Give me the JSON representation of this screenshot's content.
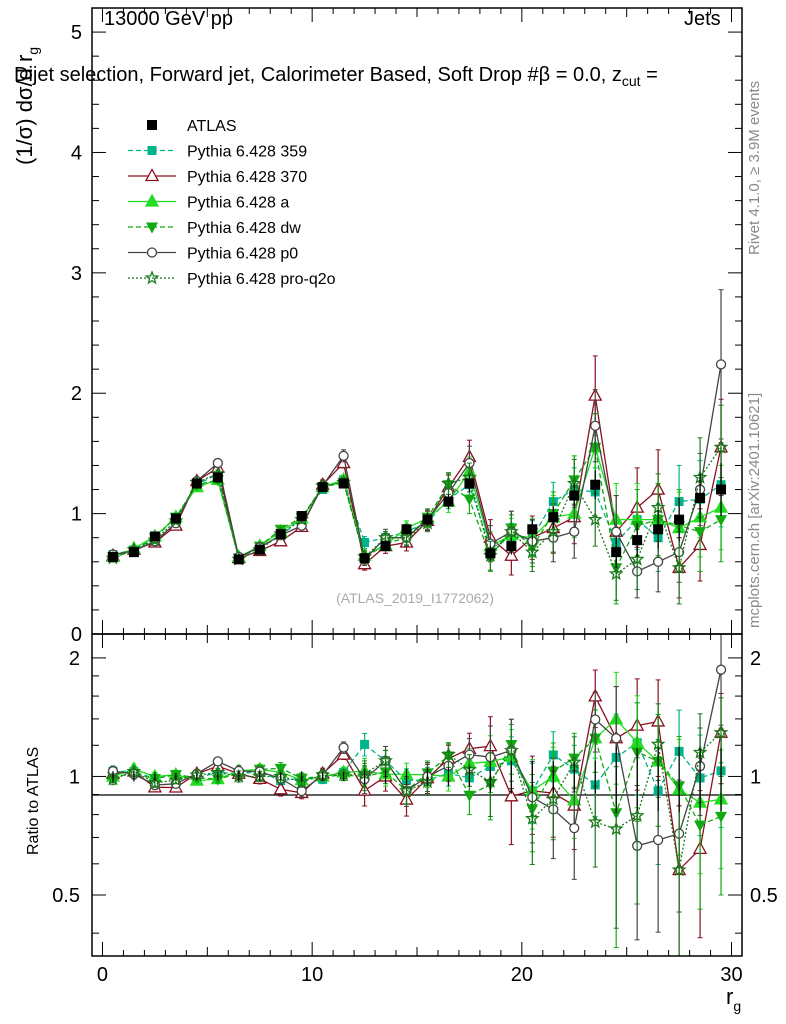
{
  "header": {
    "energy_label": "13000 GeV pp",
    "process_label": "Jets",
    "plot_title": "Dijet selection, Forward jet, Calorimeter Based, Soft Drop #β = 0.0, z",
    "title_sub": "cut",
    "title_tail": " ="
  },
  "side_labels": {
    "rivet": "Rivet 4.1.0, ≥ 3.9M events",
    "mcplots": "mcplots.cern.ch [arXiv:2401.10621]"
  },
  "watermark": "(ATLAS_2019_I1772062)",
  "axes": {
    "main_ylabel": "(1/σ) dσ/d r",
    "main_ylabel_sub": "g",
    "ratio_ylabel": "Ratio to ATLAS",
    "xlabel": "r",
    "xlabel_sub": "g"
  },
  "chart_data": {
    "type": "scatter",
    "x": [
      0.5,
      1.5,
      2.5,
      3.5,
      4.5,
      5.5,
      6.5,
      7.5,
      8.5,
      9.5,
      10.5,
      11.5,
      12.5,
      13.5,
      14.5,
      15.5,
      16.5,
      17.5,
      18.5,
      19.5,
      20.5,
      21.5,
      22.5,
      23.5,
      24.5,
      25.5,
      26.5,
      27.5,
      28.5,
      29.5
    ],
    "xlim": [
      -0.5,
      30.5
    ],
    "ylim": [
      0,
      5.2
    ],
    "ratio_ylim": [
      0.35,
      2.3
    ],
    "x_ticks": [
      0,
      10,
      20,
      30
    ],
    "y_ticks": [
      0,
      1,
      2,
      3,
      4,
      5
    ],
    "ratio_ticks": [
      0.5,
      1,
      2
    ],
    "reference": {
      "name": "ATLAS",
      "values": [
        0.64,
        0.68,
        0.81,
        0.96,
        1.25,
        1.3,
        0.62,
        0.7,
        0.83,
        0.98,
        1.22,
        1.25,
        0.63,
        0.73,
        0.87,
        0.95,
        1.1,
        1.25,
        0.67,
        0.73,
        0.87,
        0.97,
        1.15,
        1.24,
        0.68,
        0.78,
        0.87,
        0.95,
        1.13,
        1.2
      ],
      "errors": [
        0.02,
        0.02,
        0.02,
        0.02,
        0.03,
        0.03,
        0.02,
        0.02,
        0.02,
        0.03,
        0.03,
        0.03,
        0.03,
        0.03,
        0.04,
        0.05,
        0.06,
        0.07,
        0.06,
        0.07,
        0.08,
        0.09,
        0.1,
        0.12,
        0.13,
        0.14,
        0.16,
        0.18,
        0.2,
        0.22
      ]
    },
    "series": [
      {
        "name": "Pythia 6.428 359",
        "color": "#00b38a",
        "dash": "5,3",
        "marker": "square-filled",
        "values": [
          0.66,
          0.7,
          0.8,
          0.97,
          1.24,
          1.33,
          0.63,
          0.72,
          0.81,
          0.97,
          1.2,
          1.28,
          0.76,
          0.8,
          0.85,
          0.93,
          1.12,
          1.24,
          0.71,
          0.8,
          0.8,
          1.1,
          1.2,
          1.18,
          0.76,
          0.95,
          0.8,
          1.1,
          1.12,
          1.24
        ],
        "errors": [
          0.02,
          0.02,
          0.02,
          0.02,
          0.03,
          0.03,
          0.02,
          0.02,
          0.03,
          0.03,
          0.03,
          0.04,
          0.05,
          0.05,
          0.06,
          0.07,
          0.08,
          0.1,
          0.1,
          0.12,
          0.14,
          0.16,
          0.18,
          0.2,
          0.22,
          0.25,
          0.28,
          0.3,
          0.32,
          0.35
        ]
      },
      {
        "name": "Pythia 6.428 370",
        "color": "#8b0f1f",
        "dash": "",
        "marker": "triangle-open",
        "values": [
          0.65,
          0.7,
          0.76,
          0.9,
          1.27,
          1.38,
          0.63,
          0.69,
          0.77,
          0.89,
          1.24,
          1.42,
          0.58,
          0.73,
          0.76,
          0.94,
          1.22,
          1.47,
          0.8,
          0.65,
          0.8,
          0.88,
          0.97,
          1.98,
          0.85,
          1.05,
          1.2,
          0.55,
          0.74,
          1.55
        ],
        "errors": [
          0.02,
          0.02,
          0.02,
          0.02,
          0.03,
          0.03,
          0.02,
          0.02,
          0.03,
          0.03,
          0.04,
          0.04,
          0.05,
          0.06,
          0.07,
          0.08,
          0.1,
          0.14,
          0.15,
          0.16,
          0.18,
          0.2,
          0.22,
          0.33,
          0.3,
          0.33,
          0.33,
          0.25,
          0.3,
          0.4
        ]
      },
      {
        "name": "Pythia 6.428 a",
        "color": "#22dd22",
        "dash": "",
        "marker": "triangle-filled",
        "values": [
          0.64,
          0.71,
          0.81,
          0.97,
          1.22,
          1.28,
          0.64,
          0.73,
          0.85,
          0.96,
          1.22,
          1.28,
          0.65,
          0.74,
          0.88,
          0.96,
          1.1,
          1.35,
          0.73,
          0.82,
          0.8,
          0.97,
          1.0,
          1.55,
          0.95,
          0.95,
          0.95,
          0.88,
          0.97,
          1.05
        ],
        "errors": [
          0.02,
          0.02,
          0.02,
          0.02,
          0.03,
          0.03,
          0.02,
          0.02,
          0.03,
          0.03,
          0.03,
          0.04,
          0.05,
          0.05,
          0.06,
          0.07,
          0.09,
          0.12,
          0.12,
          0.14,
          0.16,
          0.18,
          0.2,
          0.28,
          0.3,
          0.3,
          0.3,
          0.3,
          0.33,
          0.35
        ]
      },
      {
        "name": "Pythia 6.428 dw",
        "color": "#11aa11",
        "dash": "5,3",
        "marker": "triangle-down-filled",
        "values": [
          0.64,
          0.69,
          0.8,
          0.97,
          1.24,
          1.28,
          0.63,
          0.73,
          0.87,
          0.97,
          1.22,
          1.26,
          0.63,
          0.75,
          0.8,
          0.97,
          1.24,
          1.12,
          0.64,
          0.88,
          0.72,
          1.0,
          1.28,
          1.55,
          0.55,
          0.9,
          0.95,
          0.9,
          0.85,
          0.95
        ],
        "errors": [
          0.02,
          0.02,
          0.02,
          0.02,
          0.03,
          0.03,
          0.02,
          0.02,
          0.03,
          0.03,
          0.03,
          0.04,
          0.05,
          0.05,
          0.06,
          0.07,
          0.09,
          0.12,
          0.12,
          0.14,
          0.16,
          0.18,
          0.2,
          0.28,
          0.3,
          0.3,
          0.3,
          0.3,
          0.33,
          0.35
        ]
      },
      {
        "name": "Pythia 6.428 p0",
        "color": "#444444",
        "dash": "",
        "marker": "circle-open",
        "values": [
          0.66,
          0.69,
          0.77,
          0.92,
          1.27,
          1.42,
          0.64,
          0.72,
          0.82,
          0.9,
          1.23,
          1.48,
          0.62,
          0.8,
          0.8,
          0.95,
          1.17,
          1.42,
          0.75,
          0.85,
          0.77,
          0.8,
          0.85,
          1.73,
          0.85,
          0.52,
          0.6,
          0.68,
          1.2,
          2.24
        ],
        "errors": [
          0.02,
          0.02,
          0.02,
          0.02,
          0.03,
          0.03,
          0.02,
          0.02,
          0.03,
          0.03,
          0.04,
          0.05,
          0.05,
          0.07,
          0.07,
          0.08,
          0.1,
          0.14,
          0.15,
          0.17,
          0.18,
          0.2,
          0.22,
          0.3,
          0.3,
          0.22,
          0.25,
          0.25,
          0.3,
          0.62
        ]
      },
      {
        "name": "Pythia 6.428 pro-q2o",
        "color": "#1a7a1a",
        "dash": "2,2",
        "marker": "star-open",
        "values": [
          0.63,
          0.7,
          0.78,
          0.94,
          1.26,
          1.33,
          0.62,
          0.7,
          0.83,
          0.95,
          1.23,
          1.26,
          0.64,
          0.8,
          0.8,
          0.92,
          1.25,
          1.3,
          0.65,
          0.85,
          0.68,
          0.85,
          1.25,
          0.95,
          0.5,
          0.62,
          1.05,
          0.55,
          1.3,
          1.55
        ],
        "errors": [
          0.02,
          0.02,
          0.02,
          0.02,
          0.03,
          0.03,
          0.02,
          0.02,
          0.03,
          0.03,
          0.03,
          0.04,
          0.05,
          0.05,
          0.06,
          0.07,
          0.09,
          0.12,
          0.12,
          0.14,
          0.16,
          0.18,
          0.2,
          0.22,
          0.22,
          0.25,
          0.28,
          0.3,
          0.33,
          0.35
        ]
      }
    ]
  }
}
